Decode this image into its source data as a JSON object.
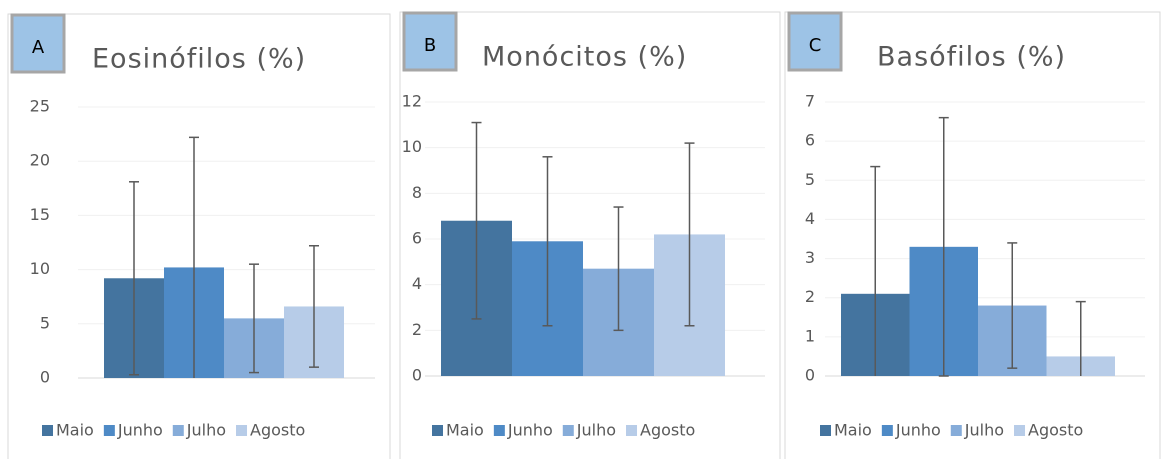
{
  "chart_data": [
    {
      "type": "bar",
      "label": "A",
      "title": "Eosinófilos (%)",
      "categories": [
        "Maio",
        "Junho",
        "Julho",
        "Agosto"
      ],
      "values": [
        9.2,
        10.2,
        5.5,
        6.6
      ],
      "errors": [
        8.9,
        12,
        5,
        5.6
      ],
      "colors": [
        "#44749f",
        "#4e8ac6",
        "#86acd9",
        "#b7cce8"
      ],
      "ylim": [
        0,
        25
      ],
      "yticks": [
        0,
        5,
        10,
        15,
        20,
        25
      ],
      "grid": true
    },
    {
      "type": "bar",
      "label": "B",
      "title": "Monócitos (%)",
      "categories": [
        "Maio",
        "Junho",
        "Julho",
        "Agosto"
      ],
      "values": [
        6.8,
        5.9,
        4.7,
        6.2
      ],
      "errors": [
        4.3,
        3.7,
        2.7,
        4.0
      ],
      "colors": [
        "#44749f",
        "#4e8ac6",
        "#86acd9",
        "#b7cce8"
      ],
      "ylim": [
        0,
        12
      ],
      "yticks": [
        0,
        2,
        4,
        6,
        8,
        10,
        12
      ],
      "grid": true
    },
    {
      "type": "bar",
      "label": "C",
      "title": "Basófilos (%)",
      "categories": [
        "Maio",
        "Junho",
        "Julho",
        "Agosto"
      ],
      "values": [
        2.1,
        3.3,
        1.8,
        0.5
      ],
      "errors": [
        3.25,
        3.3,
        1.6,
        1.4
      ],
      "colors": [
        "#44749f",
        "#4e8ac6",
        "#86acd9",
        "#b7cce8"
      ],
      "ylim": [
        0,
        7
      ],
      "yticks": [
        0,
        1,
        2,
        3,
        4,
        5,
        6,
        7
      ],
      "grid": true
    }
  ]
}
